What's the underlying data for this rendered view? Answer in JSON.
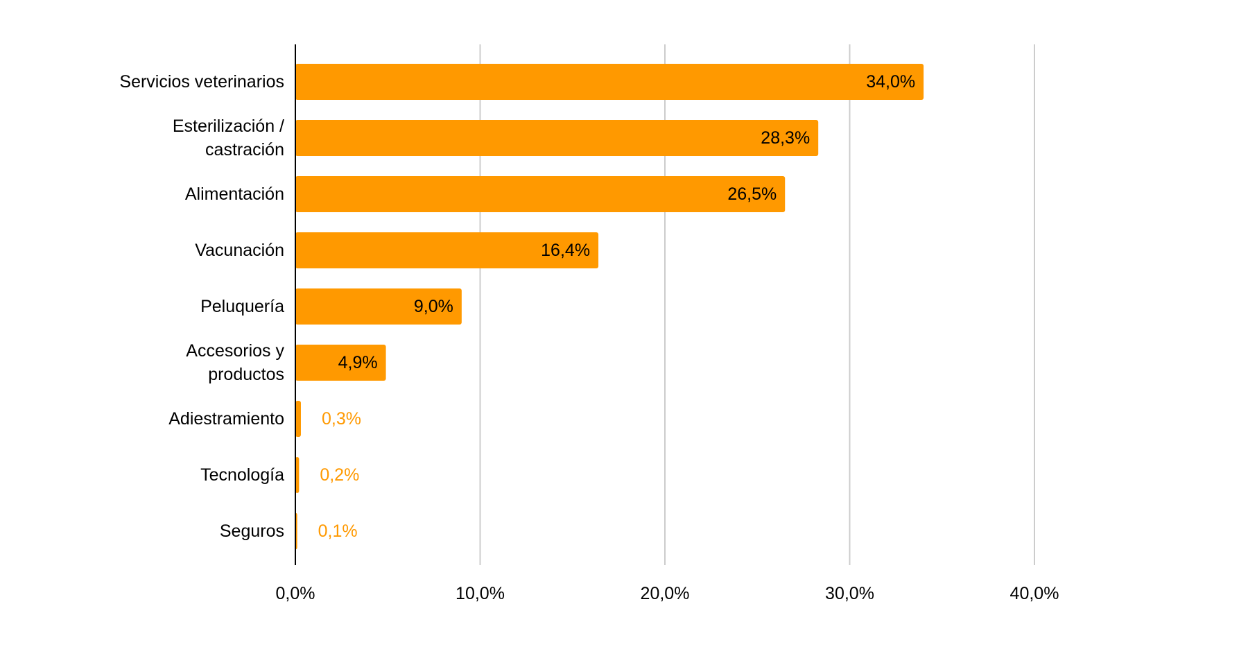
{
  "chart_data": {
    "type": "bar",
    "orientation": "horizontal",
    "title": "",
    "xlabel": "",
    "ylabel": "",
    "categories": [
      [
        "Servicios veterinarios"
      ],
      [
        "Esterilización /",
        "castración"
      ],
      [
        "Alimentación"
      ],
      [
        "Vacunación"
      ],
      [
        "Peluquería"
      ],
      [
        "Accesorios y",
        "productos"
      ],
      [
        "Adiestramiento"
      ],
      [
        "Tecnología"
      ],
      [
        "Seguros"
      ]
    ],
    "values": [
      34.0,
      28.3,
      26.5,
      16.4,
      9.0,
      4.9,
      0.3,
      0.2,
      0.1
    ],
    "value_labels": [
      "34,0%",
      "28,3%",
      "26,5%",
      "16,4%",
      "9,0%",
      "4,9%",
      "0,3%",
      "0,2%",
      "0,1%"
    ],
    "xlim": [
      0,
      40
    ],
    "ticks": [
      0,
      10,
      20,
      30,
      40
    ],
    "tick_labels": [
      "0,0%",
      "10,0%",
      "20,0%",
      "30,0%",
      "40,0%"
    ],
    "grid": true,
    "legend": "none",
    "colors": {
      "bar": "#ff9900",
      "label_inside": "#000000",
      "label_outside": "#ff9900",
      "grid": "#cccccc",
      "axis": "#000000"
    }
  }
}
